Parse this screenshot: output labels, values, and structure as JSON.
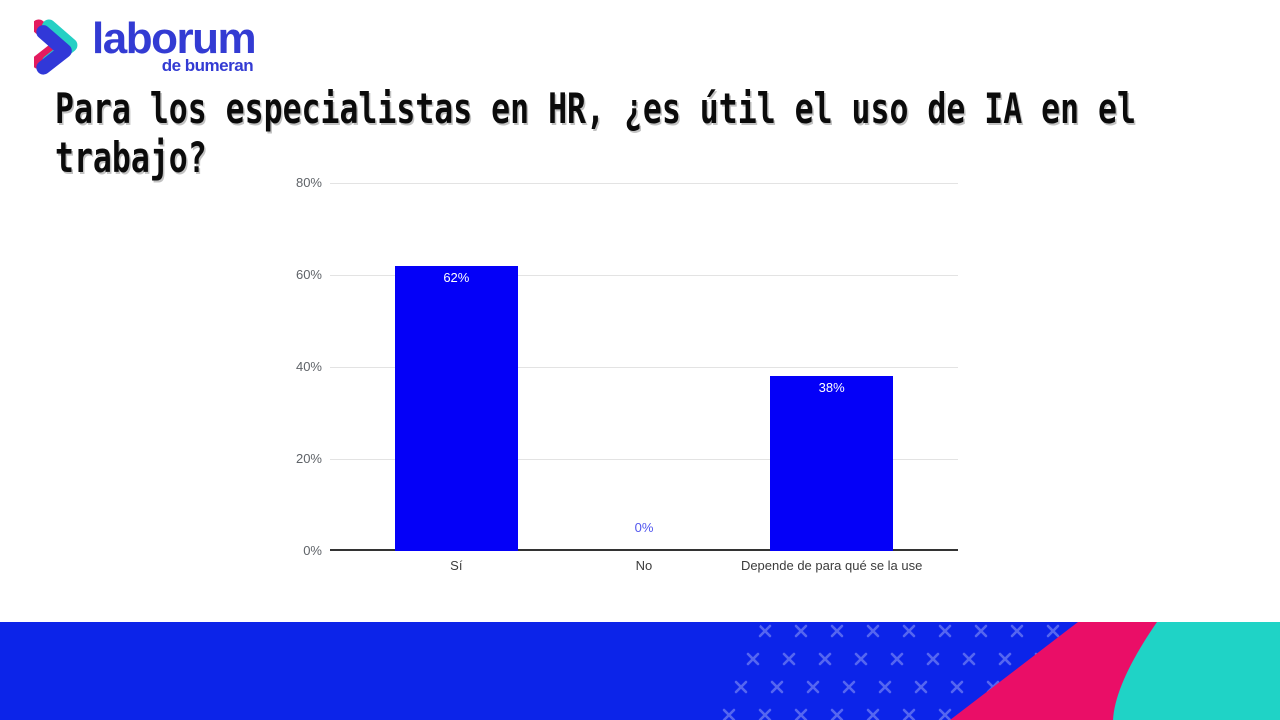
{
  "logo": {
    "brand": "laborum",
    "subtitle": "de bumeran",
    "colors": {
      "text": "#333bd3",
      "chevron_blue": "#3138d8",
      "chevron_cyan": "#25d0c4",
      "chevron_pink": "#e31b5f"
    }
  },
  "title": {
    "full": "Para los especialistas en HR, ¿es útil el uso de IA en el trabajo?",
    "lines": [
      "Para los especialistas en HR, ¿es útil el uso de IA en el",
      "trabajo?"
    ]
  },
  "chart_data": {
    "type": "bar",
    "title": "",
    "categories": [
      "Sí",
      "No",
      "Depende de para qué se la use"
    ],
    "values": [
      62,
      0,
      38
    ],
    "value_labels": [
      "62%",
      "0%",
      "38%"
    ],
    "y_ticks": [
      {
        "v": 80,
        "label": "80%"
      },
      {
        "v": 60,
        "label": "60%"
      },
      {
        "v": 40,
        "label": "40%"
      },
      {
        "v": 20,
        "label": "20%"
      },
      {
        "v": 0,
        "label": "0%"
      }
    ],
    "ylim": [
      0,
      80
    ],
    "xlabel": "",
    "ylabel": "",
    "grid": true,
    "legend_position": "none",
    "colors": {
      "bar": "#0400f8",
      "value_label_inside": "#ffffff",
      "value_label_zero": "#5156ee",
      "grid": "#e3e3e3",
      "axis": "#333333",
      "tick_text": "#5f6368",
      "category_text": "#3c3c3c"
    }
  },
  "footer": {
    "colors": {
      "blue": "#0c24e9",
      "pink": "#ea0e67",
      "cyan": "#1fd3c6",
      "x_marks": "rgba(255,255,255,0.30)"
    }
  }
}
